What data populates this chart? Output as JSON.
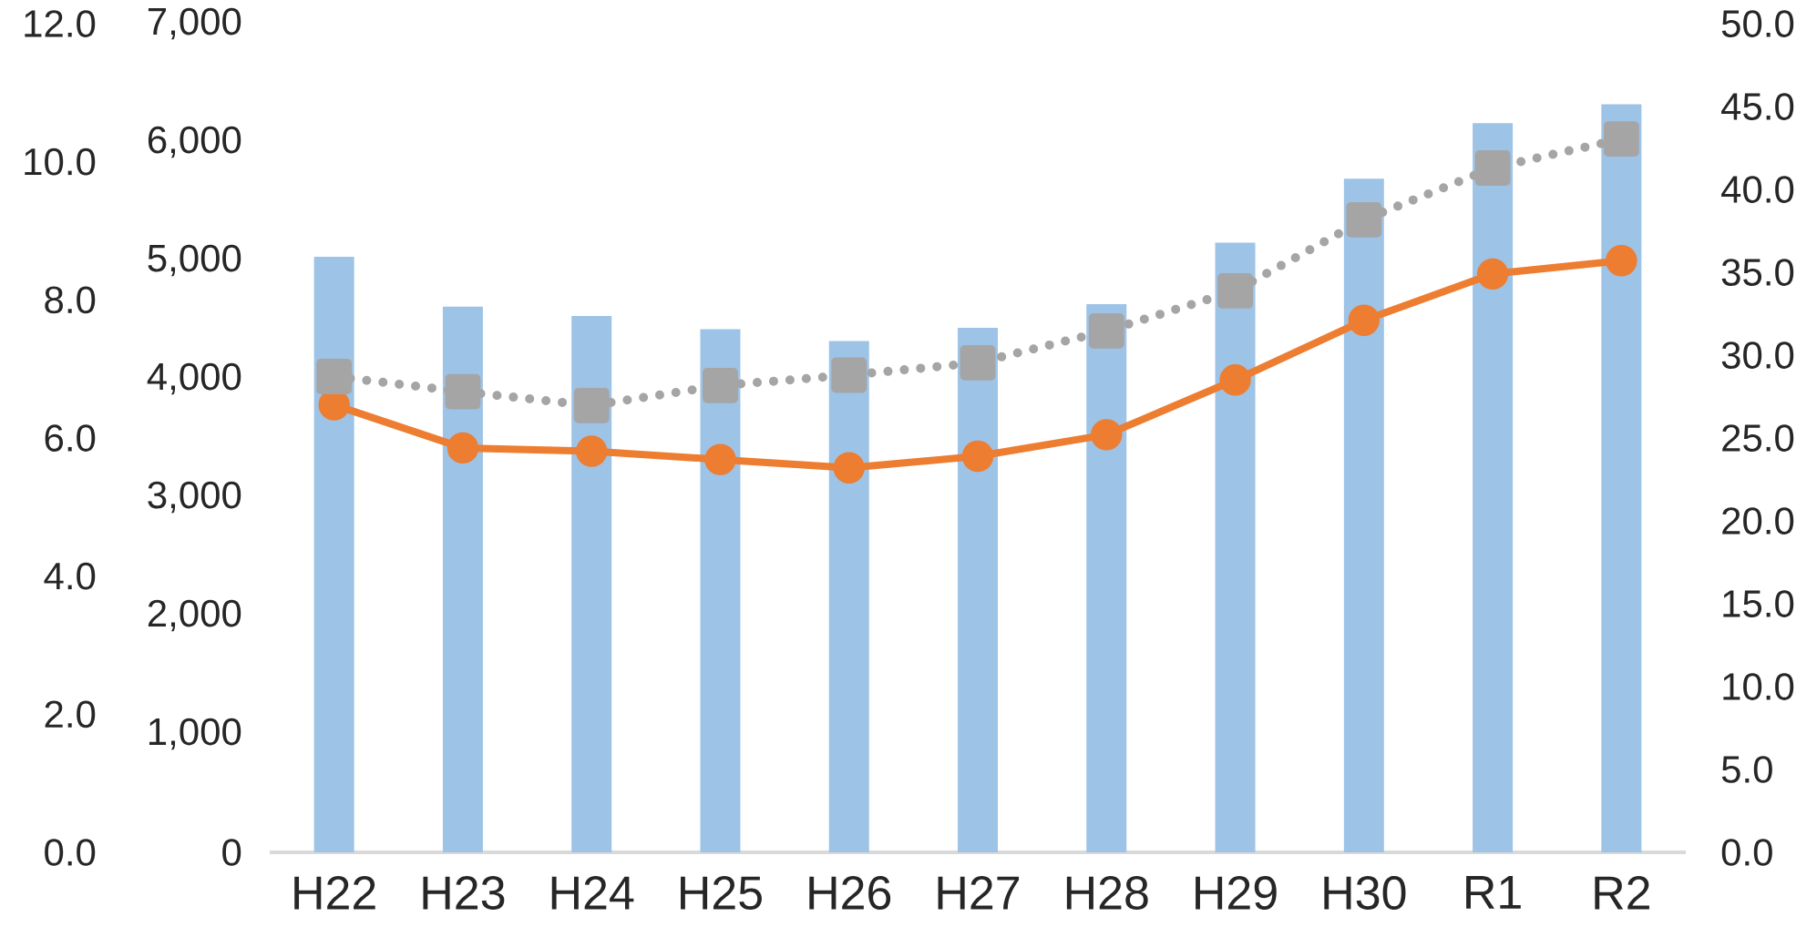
{
  "chart_data": {
    "type": "bar",
    "categories": [
      "H22",
      "H23",
      "H24",
      "H25",
      "H26",
      "H27",
      "H28",
      "H29",
      "H30",
      "R1",
      "R2"
    ],
    "series": [
      {
        "color": "#9dc3e6",
        "values": [
          5030,
          4610,
          4530,
          4420,
          4320,
          4430,
          4630,
          5150,
          5690,
          6160,
          6320
        ]
      },
      {
        "type": "line",
        "axis": "y2",
        "color": "#ed7d31",
        "marker": "circle",
        "line_style": "solid",
        "values": [
          27.0,
          24.4,
          24.2,
          23.7,
          23.2,
          23.9,
          25.2,
          28.5,
          32.1,
          34.9,
          35.7
        ]
      },
      {
        "type": "line",
        "axis": "y3",
        "color": "#a5a5a5",
        "marker": "square",
        "line_style": "dotted",
        "values": [
          6.89,
          6.67,
          6.47,
          6.76,
          6.91,
          7.09,
          7.55,
          8.13,
          9.16,
          9.91,
          10.33
        ]
      }
    ],
    "ylim": [
      0,
      7000
    ],
    "yticks": [
      0,
      {
        "value": 1000,
        "label": "1,000"
      },
      {
        "value": 2000,
        "label": "2,000"
      },
      {
        "value": 3000,
        "label": "3,000"
      },
      {
        "value": 4000,
        "label": "4,000"
      },
      {
        "value": 5000,
        "label": "5,000"
      },
      {
        "value": 6000,
        "label": "6,000"
      },
      {
        "value": 7000,
        "label": "7,000"
      }
    ],
    "y2lim": [
      0,
      50
    ],
    "y2ticks": [
      {
        "value": 0,
        "label": "0.0"
      },
      {
        "value": 5,
        "label": "5.0"
      },
      {
        "value": 10,
        "label": "10.0"
      },
      {
        "value": 15,
        "label": "15.0"
      },
      {
        "value": 20,
        "label": "20.0"
      },
      {
        "value": 25,
        "label": "25.0"
      },
      {
        "value": 30,
        "label": "30.0"
      },
      {
        "value": 35,
        "label": "35.0"
      },
      {
        "value": 40,
        "label": "40.0"
      },
      {
        "value": 45,
        "label": "45.0"
      },
      {
        "value": 50,
        "label": "50.0"
      }
    ],
    "y3lim": [
      0,
      12
    ],
    "y3ticks": [
      {
        "value": 0,
        "label": "0.0"
      },
      {
        "value": 2,
        "label": "2.0"
      },
      {
        "value": 4,
        "label": "4.0"
      },
      {
        "value": 6,
        "label": "6.0"
      },
      {
        "value": 8,
        "label": "8.0"
      },
      {
        "value": 10,
        "label": "10.0"
      },
      {
        "value": 12,
        "label": "12.0"
      }
    ]
  }
}
